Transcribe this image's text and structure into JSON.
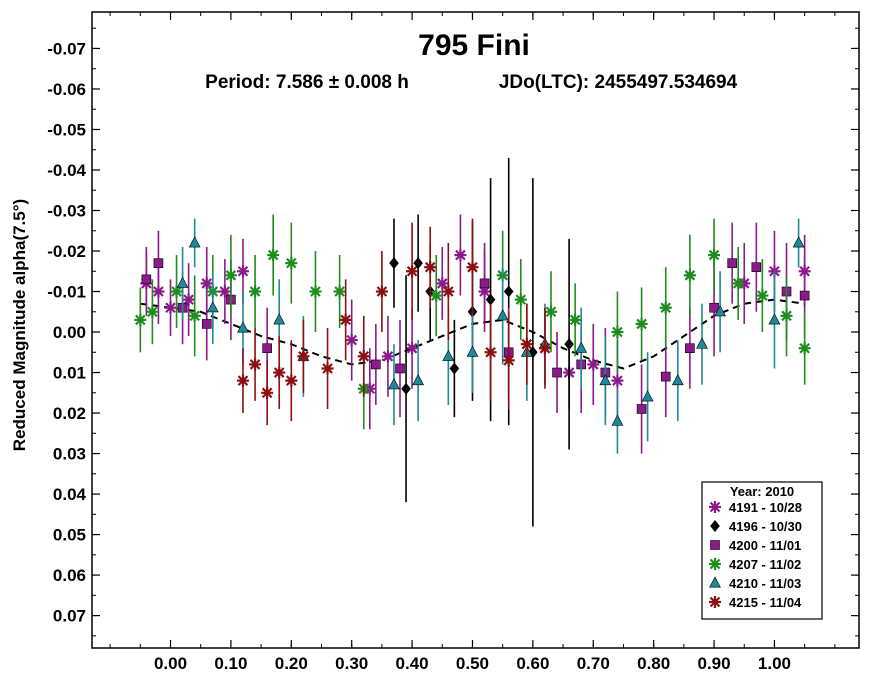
{
  "chart_data": {
    "type": "scatter",
    "title": "795 Fini",
    "subtitle_period": "Period: 7.586 ± 0.008 h",
    "subtitle_epoch": "JDo(LTC): 2455497.534694",
    "ylabel": "Reduced Magnitude alpha(7.5°)",
    "xlabel": "",
    "xlim": [
      -0.13,
      1.14
    ],
    "ylim": [
      0.078,
      -0.079
    ],
    "y_inverted": true,
    "x_ticks": [
      "0.00",
      "0.10",
      "0.20",
      "0.30",
      "0.40",
      "0.50",
      "0.60",
      "0.70",
      "0.80",
      "0.90",
      "1.00"
    ],
    "x_tick_values": [
      0,
      0.1,
      0.2,
      0.3,
      0.4,
      0.5,
      0.6,
      0.7,
      0.8,
      0.9,
      1.0
    ],
    "y_ticks": [
      "-0.07",
      "-0.06",
      "-0.05",
      "-0.04",
      "-0.03",
      "-0.02",
      "-0.01",
      "0.00",
      "0.01",
      "0.02",
      "0.03",
      "0.04",
      "0.05",
      "0.06",
      "0.07"
    ],
    "y_tick_values": [
      -0.07,
      -0.06,
      -0.05,
      -0.04,
      -0.03,
      -0.02,
      -0.01,
      0.0,
      0.01,
      0.02,
      0.03,
      0.04,
      0.05,
      0.06,
      0.07
    ],
    "legend_title": "Year: 2010",
    "legend_position": "bottom-right",
    "grid": false,
    "fit_curve": {
      "x": [
        -0.05,
        0.0,
        0.05,
        0.1,
        0.15,
        0.2,
        0.25,
        0.3,
        0.35,
        0.4,
        0.45,
        0.5,
        0.55,
        0.6,
        0.65,
        0.7,
        0.75,
        0.8,
        0.85,
        0.9,
        0.95,
        1.0,
        1.05
      ],
      "y": [
        -0.007,
        -0.006,
        -0.005,
        -0.002,
        0.001,
        0.003,
        0.006,
        0.008,
        0.007,
        0.004,
        0.001,
        -0.002,
        -0.003,
        0.0,
        0.004,
        0.007,
        0.009,
        0.006,
        0.001,
        -0.004,
        -0.007,
        -0.008,
        -0.007
      ]
    },
    "series": [
      {
        "name": "4191 - 10/28",
        "marker": "asterisk",
        "color": "#8b1a8b",
        "x": [
          -0.04,
          -0.02,
          0.0,
          0.03,
          0.06,
          0.09,
          0.12,
          0.3,
          0.33,
          0.36,
          0.4,
          0.45,
          0.48,
          0.52,
          0.62,
          0.66,
          0.7,
          0.74,
          0.95,
          1.0,
          1.05
        ],
        "y": [
          -0.012,
          -0.01,
          -0.006,
          -0.008,
          -0.012,
          -0.01,
          -0.015,
          0.002,
          0.014,
          0.006,
          0.004,
          -0.012,
          -0.019,
          -0.01,
          0.004,
          0.01,
          0.008,
          0.012,
          -0.012,
          -0.015,
          -0.015
        ],
        "err": [
          0.008,
          0.008,
          0.007,
          0.009,
          0.009,
          0.008,
          0.008,
          0.01,
          0.01,
          0.01,
          0.01,
          0.009,
          0.01,
          0.01,
          0.009,
          0.009,
          0.01,
          0.01,
          0.01,
          0.01,
          0.009
        ]
      },
      {
        "name": "4196 - 10/30",
        "marker": "diamond",
        "color": "#000000",
        "x": [
          0.37,
          0.39,
          0.41,
          0.43,
          0.47,
          0.5,
          0.53,
          0.56,
          0.6,
          0.66
        ],
        "y": [
          -0.017,
          0.014,
          -0.017,
          -0.01,
          0.009,
          -0.005,
          -0.008,
          -0.01,
          0.005,
          0.003
        ],
        "err": [
          0.011,
          0.028,
          0.012,
          0.012,
          0.012,
          0.022,
          0.03,
          0.033,
          0.043,
          0.026
        ]
      },
      {
        "name": "4200 - 11/01",
        "marker": "square",
        "color": "#8b1a8b",
        "x": [
          -0.04,
          -0.02,
          0.02,
          0.06,
          0.1,
          0.16,
          0.34,
          0.38,
          0.52,
          0.56,
          0.64,
          0.68,
          0.72,
          0.78,
          0.82,
          0.86,
          0.9,
          0.93,
          0.97,
          1.02,
          1.05
        ],
        "y": [
          -0.013,
          -0.017,
          -0.006,
          -0.002,
          -0.008,
          0.004,
          0.008,
          0.009,
          -0.012,
          0.005,
          0.01,
          0.008,
          0.01,
          0.019,
          0.011,
          0.004,
          -0.006,
          -0.017,
          -0.016,
          -0.01,
          -0.009
        ],
        "err": [
          0.008,
          0.008,
          0.009,
          0.009,
          0.01,
          0.01,
          0.01,
          0.012,
          0.01,
          0.011,
          0.01,
          0.012,
          0.011,
          0.011,
          0.01,
          0.01,
          0.012,
          0.01,
          0.011,
          0.012,
          0.01
        ]
      },
      {
        "name": "4207 - 11/02",
        "marker": "asterisk",
        "color": "#1e8c1e",
        "x": [
          -0.05,
          -0.03,
          0.01,
          0.04,
          0.07,
          0.1,
          0.14,
          0.17,
          0.2,
          0.24,
          0.28,
          0.32,
          0.44,
          0.55,
          0.58,
          0.63,
          0.67,
          0.74,
          0.78,
          0.82,
          0.86,
          0.9,
          0.94,
          0.98,
          1.02,
          1.05
        ],
        "y": [
          -0.003,
          -0.005,
          -0.01,
          -0.004,
          -0.01,
          -0.014,
          -0.01,
          -0.019,
          -0.017,
          -0.01,
          -0.01,
          0.014,
          -0.009,
          -0.014,
          -0.008,
          -0.005,
          -0.003,
          0.0,
          -0.002,
          -0.006,
          -0.014,
          -0.019,
          -0.012,
          -0.009,
          -0.004,
          0.004
        ],
        "err": [
          0.008,
          0.008,
          0.009,
          0.01,
          0.009,
          0.01,
          0.009,
          0.01,
          0.01,
          0.01,
          0.009,
          0.01,
          0.01,
          0.011,
          0.01,
          0.01,
          0.009,
          0.01,
          0.009,
          0.01,
          0.01,
          0.009,
          0.009,
          0.009,
          0.01,
          0.009
        ]
      },
      {
        "name": "4210 - 11/03",
        "marker": "triangle",
        "color": "#1c8a9a",
        "x": [
          0.02,
          0.04,
          0.07,
          0.12,
          0.18,
          0.22,
          0.37,
          0.41,
          0.46,
          0.5,
          0.55,
          0.59,
          0.62,
          0.68,
          0.72,
          0.74,
          0.79,
          0.84,
          0.88,
          0.91,
          1.0,
          1.04
        ],
        "y": [
          -0.012,
          -0.022,
          -0.006,
          -0.001,
          -0.003,
          0.006,
          0.013,
          0.012,
          0.006,
          0.005,
          -0.004,
          0.005,
          0.003,
          0.004,
          0.012,
          0.022,
          0.016,
          0.012,
          0.003,
          -0.005,
          -0.003,
          -0.022
        ],
        "err": [
          0.009,
          0.006,
          0.009,
          0.009,
          0.01,
          0.01,
          0.01,
          0.01,
          0.012,
          0.01,
          0.012,
          0.012,
          0.01,
          0.01,
          0.011,
          0.008,
          0.011,
          0.01,
          0.01,
          0.01,
          0.012,
          0.006
        ]
      },
      {
        "name": "4215 - 11/04",
        "marker": "asterisk",
        "color": "#8b1010",
        "x": [
          0.12,
          0.14,
          0.16,
          0.18,
          0.2,
          0.22,
          0.26,
          0.29,
          0.32,
          0.35,
          0.4,
          0.43,
          0.46,
          0.5,
          0.53,
          0.56,
          0.59,
          0.62
        ],
        "y": [
          0.012,
          0.008,
          0.015,
          0.01,
          0.012,
          0.006,
          0.009,
          -0.003,
          0.006,
          -0.01,
          -0.015,
          -0.016,
          -0.01,
          -0.016,
          0.005,
          0.007,
          0.003,
          0.004
        ],
        "err": [
          0.008,
          0.009,
          0.008,
          0.009,
          0.01,
          0.009,
          0.01,
          0.01,
          0.01,
          0.01,
          0.012,
          0.01,
          0.012,
          0.012,
          0.012,
          0.012,
          0.01,
          0.01
        ]
      }
    ]
  }
}
